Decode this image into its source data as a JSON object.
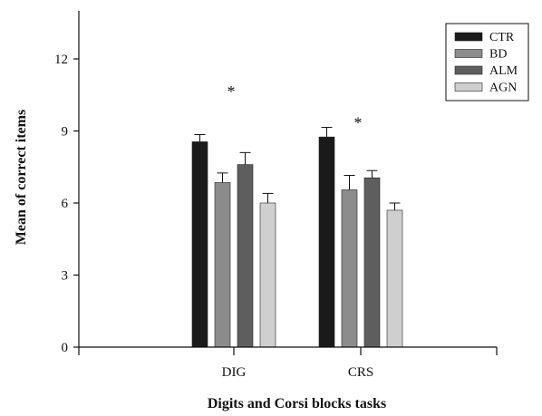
{
  "chart_data": {
    "type": "bar",
    "xlabel": "Digits and Corsi blocks tasks",
    "ylabel": "Mean of correct items",
    "categories": [
      "DIG",
      "CRS"
    ],
    "ylim": [
      0,
      14
    ],
    "yticks": [
      0,
      3,
      6,
      9,
      12
    ],
    "series": [
      {
        "name": "CTR",
        "color": "#1a1a1a",
        "values": [
          8.55,
          8.75
        ],
        "errors": [
          0.3,
          0.4
        ]
      },
      {
        "name": "BD",
        "color": "#8c8c8c",
        "values": [
          6.85,
          6.55
        ],
        "errors": [
          0.4,
          0.6
        ]
      },
      {
        "name": "ALM",
        "color": "#5e5e5e",
        "values": [
          7.6,
          7.05
        ],
        "errors": [
          0.5,
          0.3
        ]
      },
      {
        "name": "AGN",
        "color": "#cfcfcf",
        "values": [
          6.0,
          5.7
        ],
        "errors": [
          0.4,
          0.3
        ]
      }
    ],
    "annotations": [
      {
        "text": "*",
        "category": "DIG",
        "y": 10.8
      },
      {
        "text": "*",
        "category": "CRS",
        "y": 9.5
      }
    ],
    "legend": {
      "position": "top-right"
    },
    "grid": false
  }
}
